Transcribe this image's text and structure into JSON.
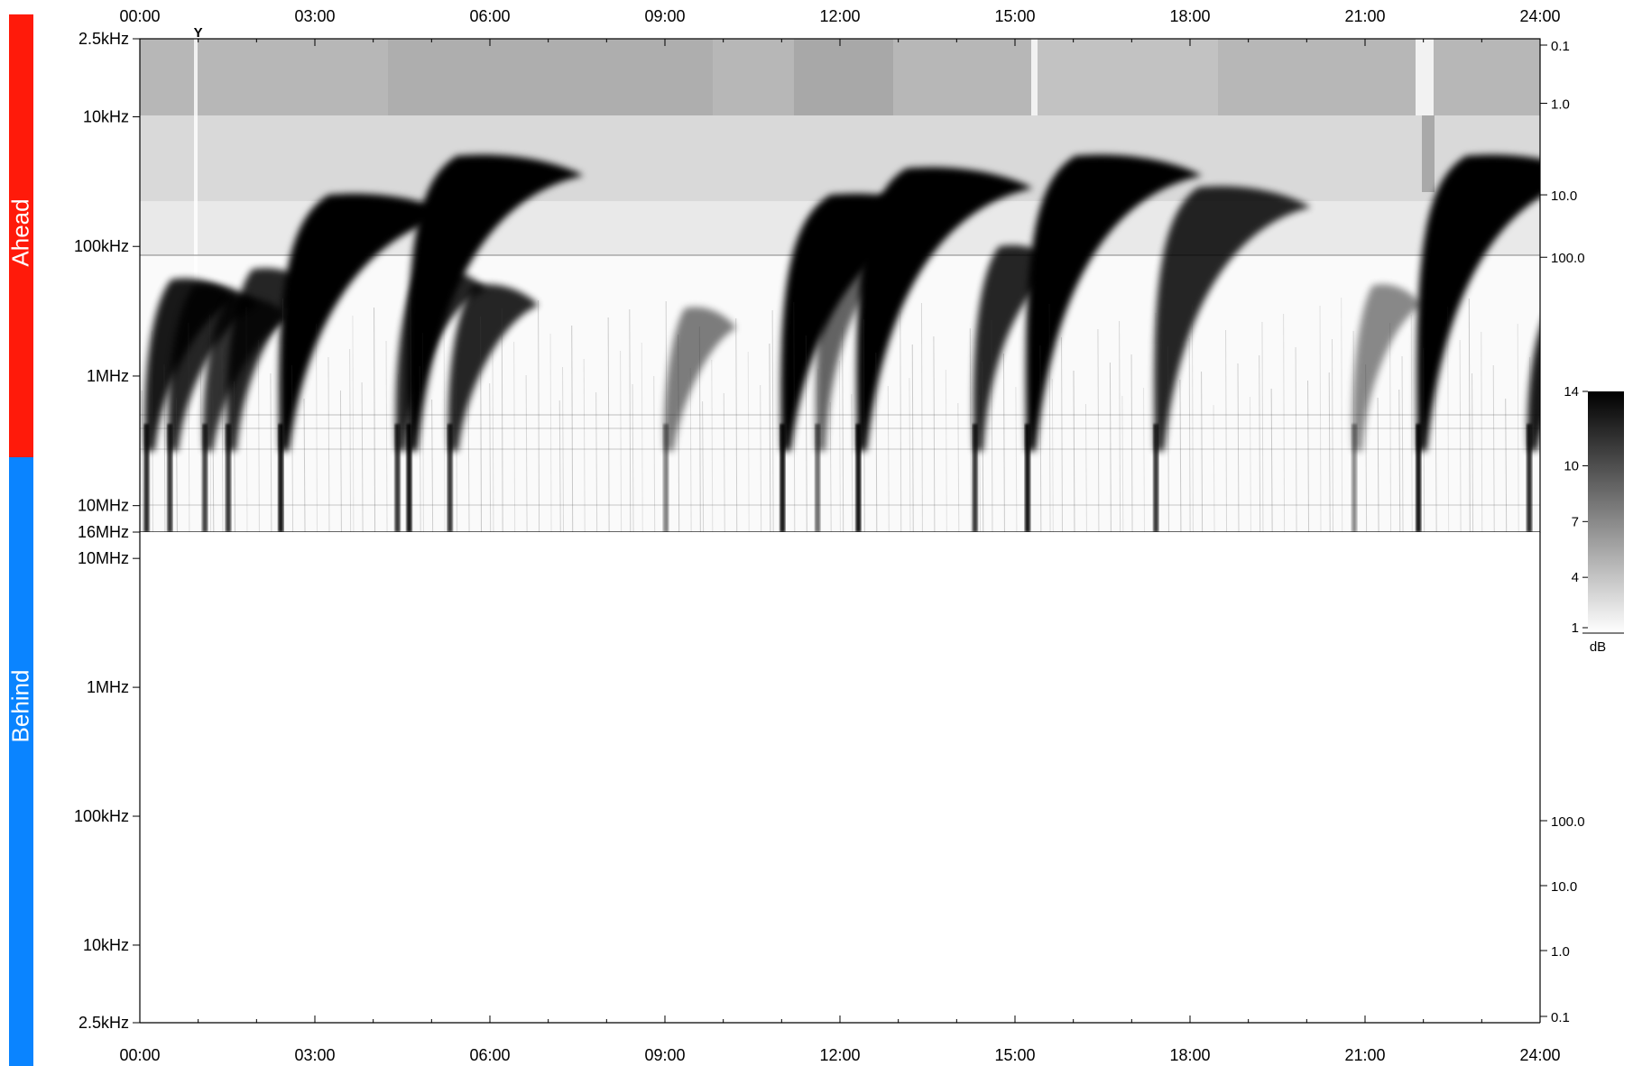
{
  "panels": {
    "ahead": {
      "label": "Ahead",
      "color": "#ff1a0a"
    },
    "behind": {
      "label": "Behind",
      "color": "#0a84ff"
    }
  },
  "chart_data": [
    {
      "type": "heatmap",
      "panel": "Ahead",
      "x_ticks": [
        "00:00",
        "03:00",
        "06:00",
        "09:00",
        "12:00",
        "15:00",
        "18:00",
        "21:00",
        "24:00"
      ],
      "xlim_hours": [
        0,
        24
      ],
      "y_ticks_left": [
        "2.5kHz",
        "10kHz",
        "100kHz",
        "1MHz",
        "10MHz",
        "16MHz"
      ],
      "y_ticks_right": [
        "0.1",
        "1.0",
        "10.0",
        "100.0"
      ],
      "y_scale": "log",
      "ylim_hz": [
        2500,
        16000000
      ],
      "marker": {
        "label": "Y",
        "time_hours": 1.0
      },
      "bursts": [
        {
          "start_hours": 0.1,
          "top_hz": 180000,
          "intensity": 0.9
        },
        {
          "start_hours": 0.5,
          "top_hz": 200000,
          "intensity": 0.85
        },
        {
          "start_hours": 1.1,
          "top_hz": 250000,
          "intensity": 0.8
        },
        {
          "start_hours": 1.5,
          "top_hz": 150000,
          "intensity": 0.85
        },
        {
          "start_hours": 2.4,
          "top_hz": 40000,
          "intensity": 1.0
        },
        {
          "start_hours": 4.4,
          "top_hz": 150000,
          "intensity": 0.85
        },
        {
          "start_hours": 4.6,
          "top_hz": 20000,
          "intensity": 1.0
        },
        {
          "start_hours": 5.3,
          "top_hz": 200000,
          "intensity": 0.85
        },
        {
          "start_hours": 9.0,
          "top_hz": 300000,
          "intensity": 0.5
        },
        {
          "start_hours": 11.0,
          "top_hz": 40000,
          "intensity": 1.0
        },
        {
          "start_hours": 11.6,
          "top_hz": 100000,
          "intensity": 0.6
        },
        {
          "start_hours": 12.3,
          "top_hz": 25000,
          "intensity": 1.0
        },
        {
          "start_hours": 14.3,
          "top_hz": 100000,
          "intensity": 0.85
        },
        {
          "start_hours": 15.2,
          "top_hz": 20000,
          "intensity": 1.0
        },
        {
          "start_hours": 17.4,
          "top_hz": 35000,
          "intensity": 0.85
        },
        {
          "start_hours": 20.8,
          "top_hz": 200000,
          "intensity": 0.45
        },
        {
          "start_hours": 21.9,
          "top_hz": 20000,
          "intensity": 1.0
        },
        {
          "start_hours": 23.8,
          "top_hz": 250000,
          "intensity": 0.9
        }
      ]
    },
    {
      "type": "heatmap",
      "panel": "Behind",
      "x_ticks": [
        "00:00",
        "03:00",
        "06:00",
        "09:00",
        "12:00",
        "15:00",
        "18:00",
        "21:00",
        "24:00"
      ],
      "xlim_hours": [
        0,
        24
      ],
      "y_ticks_left": [
        "10MHz",
        "1MHz",
        "100kHz",
        "10kHz",
        "2.5kHz"
      ],
      "y_ticks_right": [
        "100.0",
        "10.0",
        "1.0",
        "0.1"
      ],
      "y_scale": "log",
      "ylim_hz": [
        16000000,
        2500
      ],
      "bursts": []
    }
  ],
  "colorbar": {
    "ticks": [
      "14",
      "10",
      "7",
      "4",
      "1"
    ],
    "unit": "dB",
    "range": [
      1,
      14
    ],
    "colors": [
      "#ffffff",
      "#000000"
    ]
  }
}
